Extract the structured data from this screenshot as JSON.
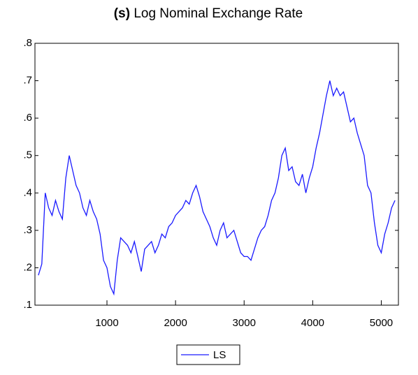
{
  "chart_data": {
    "type": "line",
    "title_label": "(s)",
    "title": "Log Nominal Exchange Rate",
    "x": [
      0,
      50,
      100,
      150,
      200,
      250,
      300,
      350,
      400,
      450,
      500,
      550,
      600,
      650,
      700,
      750,
      800,
      850,
      900,
      950,
      1000,
      1050,
      1100,
      1150,
      1200,
      1250,
      1300,
      1350,
      1400,
      1450,
      1500,
      1550,
      1600,
      1650,
      1700,
      1750,
      1800,
      1850,
      1900,
      1950,
      2000,
      2050,
      2100,
      2150,
      2200,
      2250,
      2300,
      2350,
      2400,
      2450,
      2500,
      2550,
      2600,
      2650,
      2700,
      2750,
      2800,
      2850,
      2900,
      2950,
      3000,
      3050,
      3100,
      3150,
      3200,
      3250,
      3300,
      3350,
      3400,
      3450,
      3500,
      3550,
      3600,
      3650,
      3700,
      3750,
      3800,
      3850,
      3900,
      3950,
      4000,
      4050,
      4100,
      4150,
      4200,
      4250,
      4300,
      4350,
      4400,
      4450,
      4500,
      4550,
      4600,
      4650,
      4700,
      4750,
      4800,
      4850,
      4900,
      4950,
      5000,
      5050,
      5100,
      5150,
      5200
    ],
    "series": [
      {
        "name": "LS",
        "color": "#1a1aff",
        "values": [
          0.18,
          0.21,
          0.4,
          0.36,
          0.34,
          0.38,
          0.35,
          0.33,
          0.44,
          0.5,
          0.46,
          0.42,
          0.4,
          0.36,
          0.34,
          0.38,
          0.35,
          0.33,
          0.29,
          0.22,
          0.2,
          0.15,
          0.13,
          0.22,
          0.28,
          0.27,
          0.26,
          0.24,
          0.27,
          0.23,
          0.19,
          0.25,
          0.26,
          0.27,
          0.24,
          0.26,
          0.29,
          0.28,
          0.31,
          0.32,
          0.34,
          0.35,
          0.36,
          0.38,
          0.37,
          0.4,
          0.42,
          0.39,
          0.35,
          0.33,
          0.31,
          0.28,
          0.26,
          0.3,
          0.32,
          0.28,
          0.29,
          0.3,
          0.27,
          0.24,
          0.23,
          0.23,
          0.22,
          0.25,
          0.28,
          0.3,
          0.31,
          0.34,
          0.38,
          0.4,
          0.44,
          0.5,
          0.52,
          0.46,
          0.47,
          0.43,
          0.42,
          0.45,
          0.4,
          0.44,
          0.47,
          0.52,
          0.56,
          0.61,
          0.66,
          0.7,
          0.66,
          0.68,
          0.66,
          0.67,
          0.63,
          0.59,
          0.6,
          0.56,
          0.53,
          0.5,
          0.42,
          0.4,
          0.32,
          0.26,
          0.24,
          0.29,
          0.32,
          0.36,
          0.38
        ]
      }
    ],
    "xlim": [
      -50,
      5250
    ],
    "xticks": [
      1000,
      2000,
      3000,
      4000,
      5000
    ],
    "ylim": [
      0.1,
      0.8
    ],
    "yticks": [
      {
        "value": 0.1,
        "label": ".1"
      },
      {
        "value": 0.2,
        "label": ".2"
      },
      {
        "value": 0.3,
        "label": ".3"
      },
      {
        "value": 0.4,
        "label": ".4"
      },
      {
        "value": 0.5,
        "label": ".5"
      },
      {
        "value": 0.6,
        "label": ".6"
      },
      {
        "value": 0.7,
        "label": ".7"
      },
      {
        "value": 0.8,
        "label": ".8"
      }
    ],
    "grid": false,
    "legend": "bottom"
  }
}
